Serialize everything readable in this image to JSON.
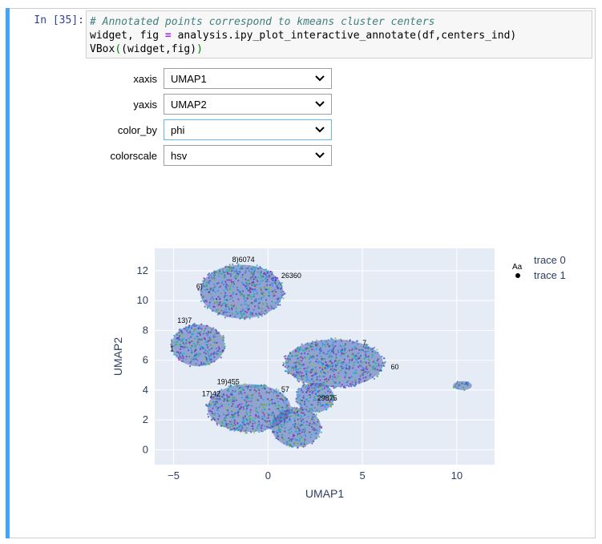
{
  "cell": {
    "prompt": "In [35]:",
    "code": {
      "line1": "# Annotated points correspond to kmeans cluster centers",
      "line2_a": "widget, fig ",
      "line2_op": "=",
      "line2_b": " analysis.ipy_plot_interactive_annotate(df,centers_ind)",
      "line3_a": "VBox",
      "line3_p1": "(",
      "line3_b": "(widget,fig)",
      "line3_p2": ")"
    }
  },
  "widgets": {
    "xaxis": {
      "label": "xaxis",
      "value": "UMAP1"
    },
    "yaxis": {
      "label": "yaxis",
      "value": "UMAP2"
    },
    "color_by": {
      "label": "color_by",
      "value": "phi"
    },
    "colorscale": {
      "label": "colorscale",
      "value": "hsv"
    }
  },
  "icons": {
    "dropdown": "chevron-down-icon"
  },
  "colors": {
    "plot_bg": "#e5ecf6",
    "cell_bar": "#42a5f5",
    "prompt": "#303f9f"
  },
  "chart_data": {
    "type": "scatter",
    "xlabel": "UMAP1",
    "ylabel": "UMAP2",
    "xlim": [
      -6,
      12
    ],
    "ylim": [
      -1,
      13.5
    ],
    "xticks": [
      -5,
      0,
      5,
      10
    ],
    "yticks": [
      0,
      2,
      4,
      6,
      8,
      10,
      12
    ],
    "grid": true,
    "legend_position": "top-right",
    "series": [
      {
        "name": "trace 0",
        "marker": "Aa"
      },
      {
        "name": "trace 1",
        "marker": "dot"
      }
    ],
    "clusters": [
      {
        "cx": -1.4,
        "cy": 10.6,
        "rx": 2.2,
        "ry": 1.8
      },
      {
        "cx": -3.7,
        "cy": 7.0,
        "rx": 1.4,
        "ry": 1.4
      },
      {
        "cx": 3.5,
        "cy": 5.8,
        "rx": 2.6,
        "ry": 1.6
      },
      {
        "cx": -1.0,
        "cy": 2.8,
        "rx": 2.2,
        "ry": 1.6
      },
      {
        "cx": 1.5,
        "cy": 1.5,
        "rx": 1.3,
        "ry": 1.3
      },
      {
        "cx": 2.5,
        "cy": 3.5,
        "rx": 1.0,
        "ry": 1.0
      },
      {
        "cx": 10.3,
        "cy": 4.3,
        "rx": 0.5,
        "ry": 0.3
      }
    ],
    "annotations": [
      {
        "text": "8)6074",
        "x": -1.9,
        "y": 12.6
      },
      {
        "text": "26360",
        "x": 0.7,
        "y": 11.5
      },
      {
        "text": "6)",
        "x": -3.8,
        "y": 10.8
      },
      {
        "text": "13)7",
        "x": -4.8,
        "y": 8.5
      },
      {
        "text": "1",
        "x": -5.2,
        "y": 6.6
      },
      {
        "text": "7",
        "x": 5.0,
        "y": 7.0
      },
      {
        "text": "60",
        "x": 6.5,
        "y": 5.4
      },
      {
        "text": "19)455",
        "x": -2.7,
        "y": 4.4
      },
      {
        "text": "17)42",
        "x": -3.5,
        "y": 3.6
      },
      {
        "text": "57",
        "x": 0.7,
        "y": 3.9
      },
      {
        "text": "29875",
        "x": 2.6,
        "y": 3.3
      }
    ]
  }
}
